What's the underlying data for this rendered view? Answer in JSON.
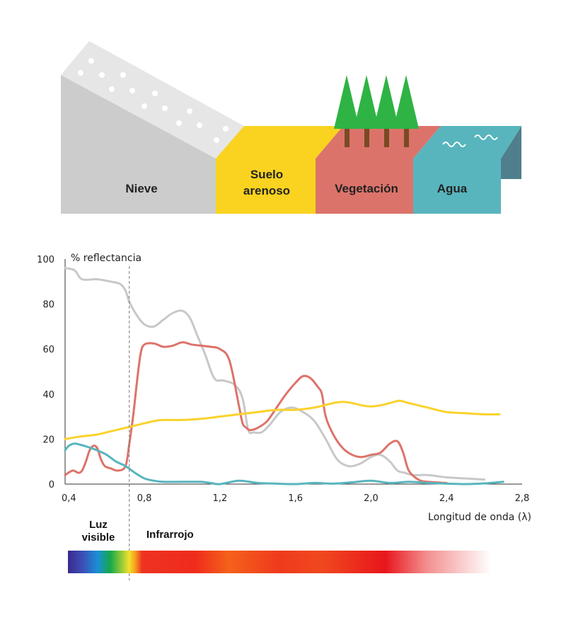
{
  "scene": {
    "surfaces": [
      {
        "label": "Nieve",
        "color": "#cccccc"
      },
      {
        "label": "Suelo arenoso",
        "line1": "Suelo",
        "line2": "arenoso",
        "color": "#f9d31f"
      },
      {
        "label": "Vegetación",
        "color": "#dc736a"
      },
      {
        "label": "Agua",
        "color": "#58b5bd"
      }
    ]
  },
  "bands": {
    "visible_line1": "Luz",
    "visible_line2": "visible",
    "infrared": "Infrarrojo"
  },
  "chart_data": {
    "type": "line",
    "ylabel": "% reflectancia",
    "xlabel": "Longitud de onda (λ)",
    "xlim": [
      0.38,
      2.8
    ],
    "ylim": [
      0,
      100
    ],
    "xticks": [
      "0,4",
      "0,8",
      "1,2",
      "1,6",
      "2,0",
      "2,4",
      "2,8"
    ],
    "yticks": [
      "0",
      "20",
      "40",
      "60",
      "80",
      "100"
    ],
    "visible_boundary": 0.72,
    "grid": false,
    "series": [
      {
        "color": "#c8c8c8",
        "x": [
          0.38,
          0.43,
          0.47,
          0.55,
          0.62,
          0.67,
          0.7,
          0.72,
          0.76,
          0.8,
          0.85,
          0.9,
          0.95,
          1.0,
          1.04,
          1.08,
          1.12,
          1.17,
          1.22,
          1.28,
          1.32,
          1.35,
          1.38,
          1.42,
          1.46,
          1.52,
          1.58,
          1.64,
          1.7,
          1.76,
          1.82,
          1.88,
          1.94,
          2.0,
          2.05,
          2.1,
          2.14,
          2.18,
          2.22,
          2.3,
          2.4,
          2.5,
          2.6
        ],
        "y": [
          96,
          95,
          91,
          91,
          90,
          89,
          86,
          81,
          75,
          71,
          70,
          73,
          76,
          77,
          74,
          66,
          58,
          47,
          46,
          44,
          38,
          24,
          23,
          23,
          26,
          32,
          34,
          32,
          28,
          20,
          11,
          8,
          9,
          12,
          13,
          10,
          6,
          5,
          4,
          4,
          3,
          2.5,
          2
        ]
      },
      {
        "color": "#dc736a",
        "x": [
          0.38,
          0.42,
          0.45,
          0.47,
          0.49,
          0.51,
          0.53,
          0.55,
          0.57,
          0.59,
          0.62,
          0.66,
          0.7,
          0.72,
          0.74,
          0.76,
          0.78,
          0.8,
          0.85,
          0.9,
          0.95,
          1.0,
          1.05,
          1.1,
          1.15,
          1.2,
          1.25,
          1.3,
          1.32,
          1.34,
          1.36,
          1.4,
          1.45,
          1.5,
          1.55,
          1.6,
          1.64,
          1.68,
          1.72,
          1.74,
          1.76,
          1.8,
          1.85,
          1.9,
          1.95,
          2.0,
          2.05,
          2.1,
          2.14,
          2.17,
          2.2,
          2.25,
          2.3,
          2.4
        ],
        "y": [
          4,
          6,
          5,
          6,
          10,
          15,
          17,
          16,
          11,
          8,
          7,
          6,
          8,
          18,
          30,
          45,
          58,
          62,
          62.5,
          61,
          61.5,
          63,
          62,
          61.5,
          61,
          60,
          55,
          35,
          27,
          25,
          24,
          25,
          28,
          34,
          40,
          45,
          48,
          47,
          43,
          40,
          30,
          22,
          16,
          13,
          12,
          13,
          14,
          18,
          19,
          14,
          6,
          2,
          1,
          0.5
        ]
      },
      {
        "color": "#fad22c",
        "x": [
          0.38,
          0.45,
          0.5,
          0.55,
          0.6,
          0.65,
          0.7,
          0.75,
          0.8,
          0.85,
          0.9,
          1.0,
          1.1,
          1.2,
          1.3,
          1.4,
          1.5,
          1.6,
          1.7,
          1.8,
          1.85,
          1.9,
          1.95,
          2.0,
          2.05,
          2.1,
          2.15,
          2.2,
          2.3,
          2.4,
          2.5,
          2.6,
          2.68
        ],
        "y": [
          20,
          21,
          21.5,
          22,
          23,
          24,
          25,
          26,
          27,
          28,
          28.5,
          28.5,
          29,
          30,
          31,
          32,
          33,
          33,
          34,
          36,
          36.5,
          36,
          35,
          34.5,
          35,
          36,
          37,
          36,
          34,
          32,
          31.5,
          31,
          31
        ]
      },
      {
        "color": "#58b5bd",
        "x": [
          0.38,
          0.4,
          0.43,
          0.46,
          0.5,
          0.55,
          0.6,
          0.65,
          0.7,
          0.75,
          0.8,
          0.85,
          0.9,
          1.0,
          1.1,
          1.15,
          1.2,
          1.3,
          1.4,
          1.5,
          1.6,
          1.7,
          1.8,
          1.9,
          2.0,
          2.1,
          2.2,
          2.3,
          2.4,
          2.5,
          2.6,
          2.7
        ],
        "y": [
          15,
          17,
          18,
          17.5,
          16.5,
          15,
          13,
          10,
          8,
          5,
          2.5,
          1.5,
          1,
          1,
          1,
          0.5,
          0,
          1.5,
          0.5,
          0.2,
          0,
          0.5,
          0.2,
          0.8,
          1.5,
          0.5,
          1,
          0.5,
          0.2,
          0,
          0.3,
          1
        ]
      }
    ]
  }
}
